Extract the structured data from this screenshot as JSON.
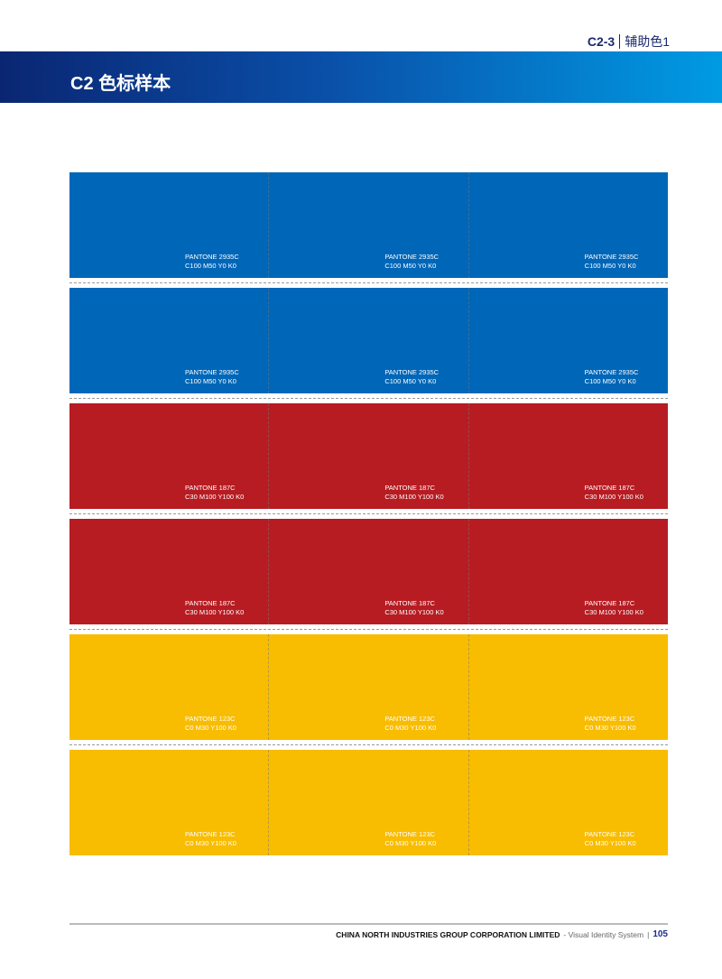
{
  "header": {
    "section_code": "C2-3",
    "section_name": "辅助色1",
    "title": "C2 色标样本"
  },
  "colors": {
    "blue": "#0066b8",
    "red": "#b71c22",
    "yellow": "#f8bc00",
    "band_start": "#0a2672",
    "band_end": "#009be3"
  },
  "rows": [
    {
      "color": "#0066b8",
      "pantone": "PANTONE 2935C",
      "cmyk": "C100 M50 Y0 K0"
    },
    {
      "color": "#0066b8",
      "pantone": "PANTONE 2935C",
      "cmyk": "C100 M50 Y0 K0"
    },
    {
      "color": "#b71c22",
      "pantone": "PANTONE 187C",
      "cmyk": "C30 M100 Y100 K0"
    },
    {
      "color": "#b71c22",
      "pantone": "PANTONE 187C",
      "cmyk": "C30 M100 Y100 K0"
    },
    {
      "color": "#f8bc00",
      "pantone": "PANTONE 123C",
      "cmyk": "C0 M30 Y100 K0"
    },
    {
      "color": "#f8bc00",
      "pantone": "PANTONE 123C",
      "cmyk": "C0 M30 Y100 K0"
    }
  ],
  "footer": {
    "corp": "CHINA NORTH INDUSTRIES GROUP CORPORATION LIMITED",
    "system": "- Visual Identity System",
    "separator": "|",
    "page": "105"
  }
}
